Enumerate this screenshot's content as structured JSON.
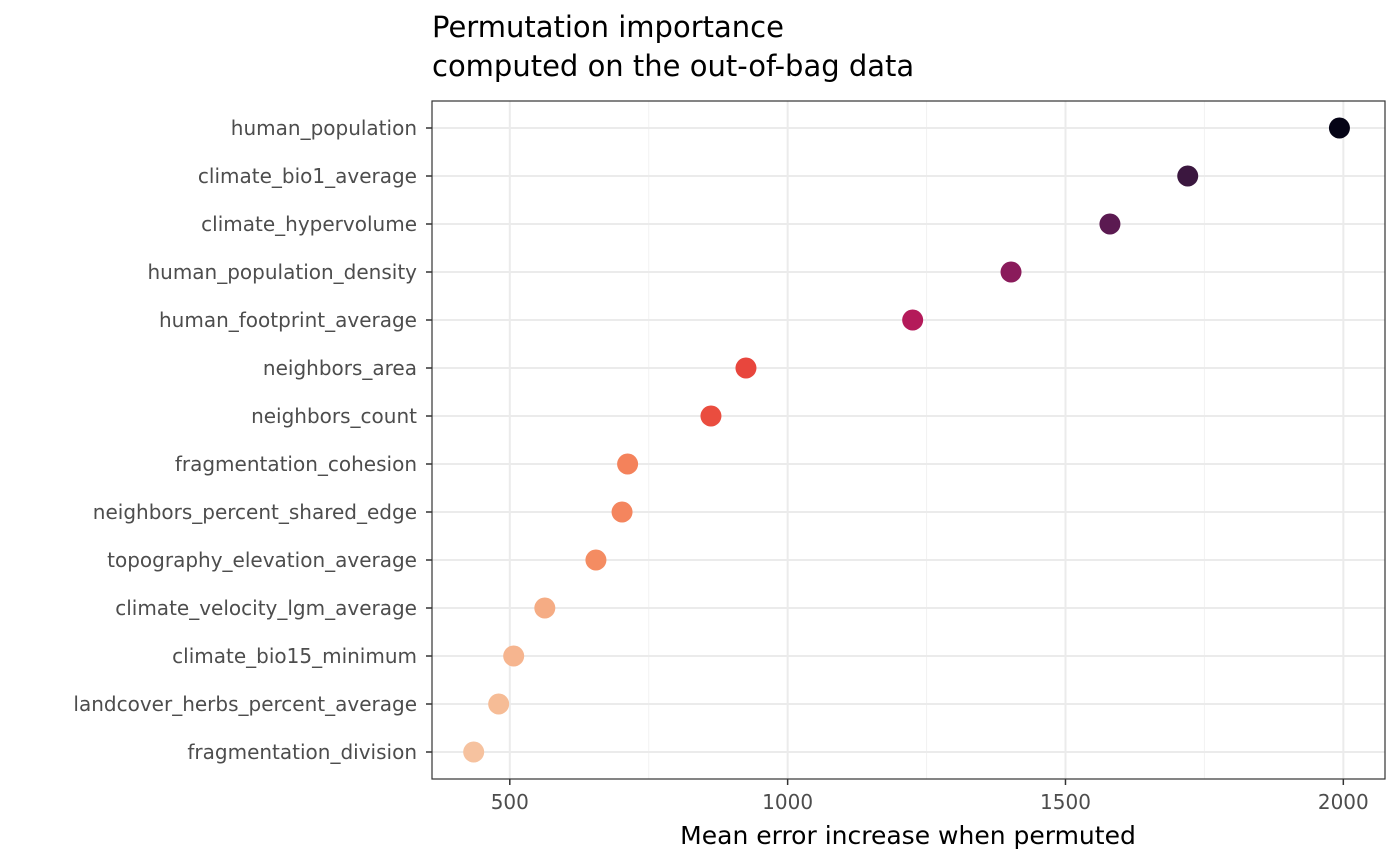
{
  "chart_data": {
    "type": "scatter",
    "title": [
      "Permutation importance",
      "computed on the out-of-bag data"
    ],
    "xlabel": "Mean error increase when permuted",
    "ylabel": "",
    "xlim": [
      360,
      2075
    ],
    "x_ticks": [
      500,
      1000,
      1500,
      2000
    ],
    "x_tick_labels": [
      "500",
      "1000",
      "1500",
      "2000"
    ],
    "grid": true,
    "legend": "none",
    "points": [
      {
        "variable": "human_population",
        "importance": 1993,
        "color": "#050416"
      },
      {
        "variable": "climate_bio1_average",
        "importance": 1720,
        "color": "#3b173f"
      },
      {
        "variable": "climate_hypervolume",
        "importance": 1580,
        "color": "#5b1a51"
      },
      {
        "variable": "human_population_density",
        "importance": 1402,
        "color": "#8a1b5b"
      },
      {
        "variable": "human_footprint_average",
        "importance": 1225,
        "color": "#b41a5a"
      },
      {
        "variable": "neighbors_area",
        "importance": 925,
        "color": "#e8463d"
      },
      {
        "variable": "neighbors_count",
        "importance": 862,
        "color": "#ea4d3f"
      },
      {
        "variable": "fragmentation_cohesion",
        "importance": 712,
        "color": "#f4825b"
      },
      {
        "variable": "neighbors_percent_shared_edge",
        "importance": 702,
        "color": "#f4855e"
      },
      {
        "variable": "topography_elevation_average",
        "importance": 655,
        "color": "#f48c62"
      },
      {
        "variable": "climate_velocity_lgm_average",
        "importance": 563,
        "color": "#f5ac84"
      },
      {
        "variable": "climate_bio15_minimum",
        "importance": 507,
        "color": "#f6b58f"
      },
      {
        "variable": "landcover_herbs_percent_average",
        "importance": 480,
        "color": "#f6bc96"
      },
      {
        "variable": "fragmentation_division",
        "importance": 435,
        "color": "#f6c29f"
      }
    ]
  }
}
